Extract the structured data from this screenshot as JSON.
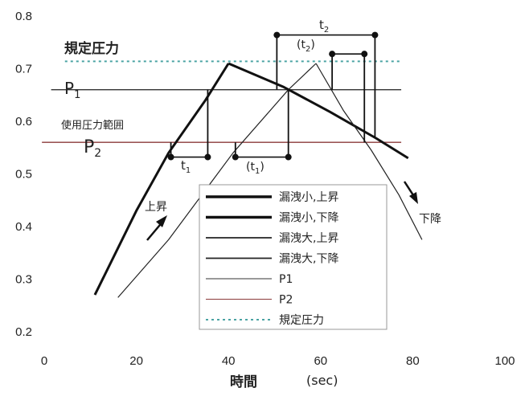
{
  "chart_data": {
    "type": "line",
    "xlabel": "時間",
    "xunit": "(sec)",
    "xlim": [
      0,
      100
    ],
    "ylim": [
      0.2,
      0.8
    ],
    "xticks": [
      0,
      20,
      40,
      60,
      80,
      100
    ],
    "yticks": [
      0.2,
      0.3,
      0.4,
      0.5,
      0.6,
      0.7,
      0.8
    ],
    "legend_position": "bottom-center",
    "grid": false,
    "series": [
      {
        "name": "漏洩小,上昇",
        "style": "thick",
        "color": "#111111",
        "points": [
          [
            11,
            0.27
          ],
          [
            20,
            0.43
          ],
          [
            27,
            0.54
          ],
          [
            35,
            0.64
          ],
          [
            40,
            0.71
          ]
        ]
      },
      {
        "name": "漏洩小,下降",
        "style": "thick",
        "color": "#111111",
        "points": [
          [
            40,
            0.71
          ],
          [
            52,
            0.665
          ],
          [
            62,
            0.618
          ],
          [
            72,
            0.568
          ],
          [
            79,
            0.53
          ]
        ]
      },
      {
        "name": "漏洩大,上昇",
        "style": "thin",
        "color": "#222222",
        "points": [
          [
            16,
            0.265
          ],
          [
            27,
            0.375
          ],
          [
            41,
            0.54
          ],
          [
            53,
            0.66
          ],
          [
            59,
            0.71
          ]
        ]
      },
      {
        "name": "漏洩大,下降",
        "style": "thin",
        "color": "#222222",
        "points": [
          [
            59,
            0.71
          ],
          [
            65,
            0.62
          ],
          [
            71,
            0.545
          ],
          [
            77,
            0.46
          ],
          [
            82,
            0.375
          ]
        ]
      },
      {
        "name": "P1",
        "style": "hline",
        "color": "#333333",
        "y": 0.66
      },
      {
        "name": "P2",
        "style": "hline",
        "color": "#8b3a3a",
        "y": 0.56
      },
      {
        "name": "規定圧力",
        "style": "dotted",
        "color": "#4aa3a3",
        "y": 0.714
      }
    ],
    "annotations": {
      "rated_pressure": "規定圧力",
      "p1": "P",
      "p1_sub": "1",
      "range": "使用圧力範囲",
      "p2": "P",
      "p2_sub": "2",
      "t1": "t",
      "t1_sub": "1",
      "t1b_open": "(t",
      "t1b_sub": "1",
      "t1b_close": ")",
      "t2": "t",
      "t2_sub": "2",
      "t2b_open": "(t",
      "t2b_sub": "2",
      "t2b_close": ")",
      "rise": "上昇",
      "fall": "下降"
    }
  }
}
